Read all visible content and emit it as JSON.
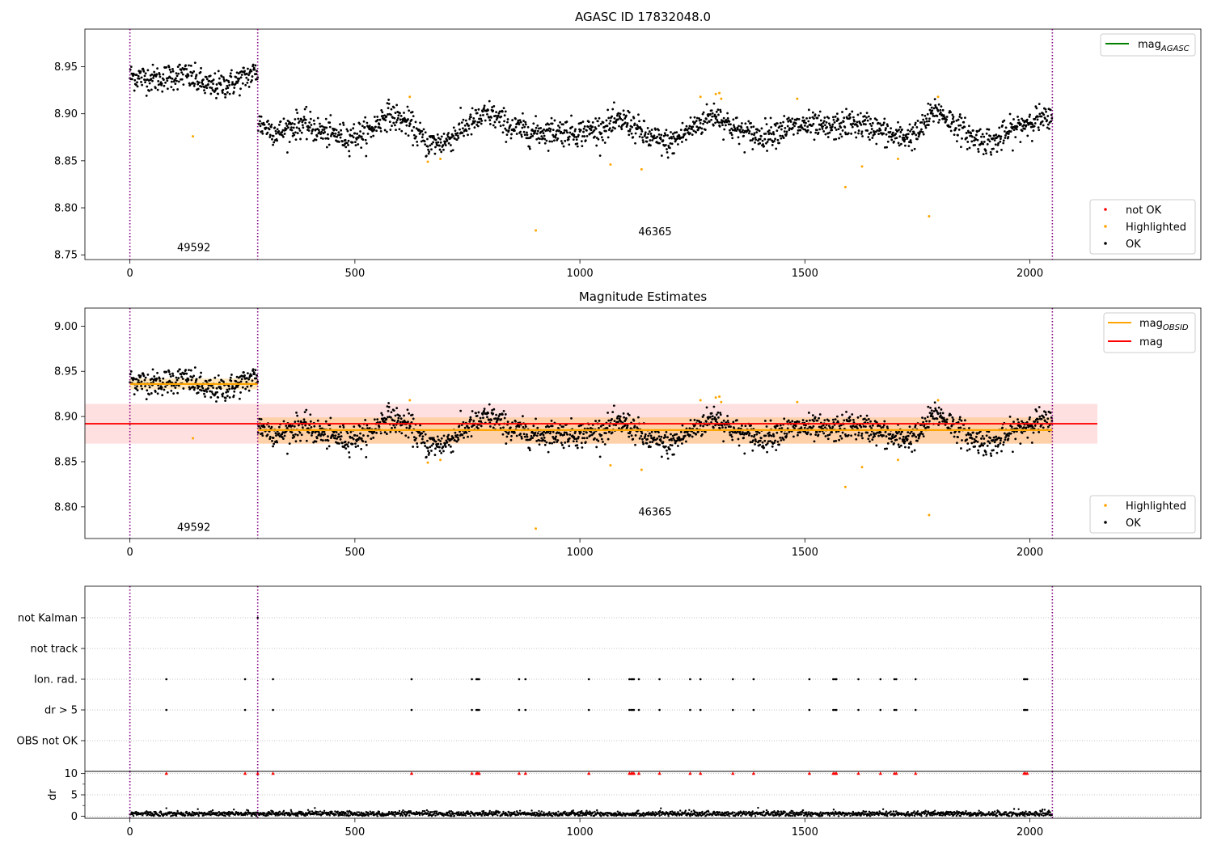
{
  "chart_data": [
    {
      "type": "scatter",
      "title": "AGASC ID 17832048.0",
      "xlim": [
        -100,
        2380
      ],
      "ylim": [
        8.745,
        8.99
      ],
      "xticks": [
        0,
        500,
        1000,
        1500,
        2000
      ],
      "yticks": [
        8.75,
        8.8,
        8.85,
        8.9,
        8.95
      ],
      "ytick_labels": [
        "8.75",
        "8.80",
        "8.85",
        "8.90",
        "8.95"
      ],
      "grid": false,
      "obsid_boundaries": [
        0,
        284,
        2050
      ],
      "obsid_labels": [
        {
          "text": "49592",
          "x": 142,
          "y": 8.754
        },
        {
          "text": "46365",
          "x": 1167,
          "y": 8.771
        }
      ],
      "line_legend": {
        "placement": "top-right",
        "entries": [
          {
            "label": "mag",
            "sub": "AGASC",
            "color": "#008000"
          }
        ]
      },
      "point_legend": {
        "placement": "bottom-right",
        "entries": [
          {
            "label": "not OK",
            "color": "#ff0000"
          },
          {
            "label": "Highlighted",
            "color": "#ffa500"
          },
          {
            "label": "OK",
            "color": "#000000"
          }
        ]
      },
      "series": [
        {
          "name": "OK",
          "color": "#000000",
          "trend": [
            [
              0,
              8.94
            ],
            [
              60,
              8.937
            ],
            [
              120,
              8.942
            ],
            [
              180,
              8.928
            ],
            [
              230,
              8.933
            ],
            [
              284,
              8.945
            ],
            [
              285,
              8.89
            ],
            [
              330,
              8.88
            ],
            [
              380,
              8.89
            ],
            [
              430,
              8.88
            ],
            [
              480,
              8.875
            ],
            [
              530,
              8.88
            ],
            [
              570,
              8.9
            ],
            [
              620,
              8.89
            ],
            [
              660,
              8.868
            ],
            [
              700,
              8.87
            ],
            [
              750,
              8.888
            ],
            [
              800,
              8.9
            ],
            [
              850,
              8.885
            ],
            [
              900,
              8.88
            ],
            [
              950,
              8.882
            ],
            [
              1000,
              8.88
            ],
            [
              1050,
              8.885
            ],
            [
              1100,
              8.893
            ],
            [
              1150,
              8.875
            ],
            [
              1200,
              8.868
            ],
            [
              1250,
              8.885
            ],
            [
              1300,
              8.9
            ],
            [
              1350,
              8.882
            ],
            [
              1400,
              8.876
            ],
            [
              1450,
              8.884
            ],
            [
              1500,
              8.888
            ],
            [
              1550,
              8.884
            ],
            [
              1600,
              8.89
            ],
            [
              1650,
              8.886
            ],
            [
              1700,
              8.875
            ],
            [
              1750,
              8.878
            ],
            [
              1790,
              8.905
            ],
            [
              1830,
              8.89
            ],
            [
              1870,
              8.875
            ],
            [
              1920,
              8.87
            ],
            [
              1970,
              8.885
            ],
            [
              2010,
              8.895
            ],
            [
              2050,
              8.892
            ]
          ],
          "noise": 0.0085,
          "count": 2050
        },
        {
          "name": "Highlighted",
          "color": "#ffa500",
          "points": [
            [
              140,
              8.876
            ],
            [
              622,
              8.918
            ],
            [
              662,
              8.849
            ],
            [
              690,
              8.852
            ],
            [
              902,
              8.776
            ],
            [
              1068,
              8.846
            ],
            [
              1137,
              8.841
            ],
            [
              1268,
              8.918
            ],
            [
              1302,
              8.921
            ],
            [
              1310,
              8.922
            ],
            [
              1314,
              8.916
            ],
            [
              1483,
              8.916
            ],
            [
              1590,
              8.822
            ],
            [
              1627,
              8.844
            ],
            [
              1707,
              8.852
            ],
            [
              1776,
              8.791
            ],
            [
              1796,
              8.918
            ]
          ]
        }
      ]
    },
    {
      "type": "scatter",
      "title": "Magnitude Estimates",
      "xlim": [
        -100,
        2380
      ],
      "ylim": [
        8.765,
        9.02
      ],
      "xticks": [
        0,
        500,
        1000,
        1500,
        2000
      ],
      "yticks": [
        8.8,
        8.85,
        8.9,
        8.95,
        9.0
      ],
      "ytick_labels": [
        "8.80",
        "8.85",
        "8.90",
        "8.95",
        "9.00"
      ],
      "grid": false,
      "obsid_boundaries": [
        0,
        284,
        2050
      ],
      "obsid_labels": [
        {
          "text": "49592",
          "x": 142,
          "y": 8.7735
        },
        {
          "text": "46365",
          "x": 1167,
          "y": 8.7905
        }
      ],
      "mag": {
        "value": 8.892,
        "band_low": 8.87,
        "band_high": 8.914,
        "x_range": [
          -100,
          2150
        ],
        "color": "#ff0000",
        "band_color": "#ffe0e0"
      },
      "obsid_mag": [
        {
          "x_range": [
            0,
            284
          ],
          "value": 8.936,
          "band_low": 8.93,
          "band_high": 8.942
        },
        {
          "x_range": [
            284,
            2050
          ],
          "value": 8.885,
          "band_low": 8.87,
          "band_high": 8.899
        }
      ],
      "line_legend": {
        "placement": "top-right",
        "entries": [
          {
            "label": "mag",
            "sub": "OBSID",
            "color": "#ffa500"
          },
          {
            "label": "mag",
            "sub": "",
            "color": "#ff0000"
          }
        ]
      },
      "point_legend": {
        "placement": "bottom-right",
        "entries": [
          {
            "label": "Highlighted",
            "color": "#ffa500"
          },
          {
            "label": "OK",
            "color": "#000000"
          }
        ]
      }
    },
    {
      "type": "scatter",
      "xlim": [
        -100,
        2380
      ],
      "flag_rows": [
        "not Kalman",
        "not track",
        "Ion. rad.",
        "dr > 5",
        "OBS not OK"
      ],
      "flag_points": {
        "not Kalman": [
          284
        ],
        "Ion. rad.": [
          81,
          256,
          318,
          626,
          760,
          770,
          773,
          776,
          865,
          879,
          1020,
          1110,
          1114,
          1117,
          1120,
          1131,
          1177,
          1245,
          1268,
          1340,
          1386,
          1510,
          1563,
          1567,
          1570,
          1619,
          1668,
          1699,
          1703,
          1746,
          1987,
          1990,
          1994
        ],
        "dr > 5": [
          81,
          256,
          318,
          626,
          760,
          770,
          773,
          776,
          865,
          879,
          1020,
          1110,
          1114,
          1117,
          1120,
          1131,
          1177,
          1245,
          1268,
          1340,
          1386,
          1510,
          1563,
          1567,
          1570,
          1619,
          1668,
          1699,
          1703,
          1746,
          1987,
          1990,
          1994
        ]
      },
      "dr": {
        "ylabel": "dr",
        "ylim": [
          -0.5,
          10.5
        ],
        "yticks": [
          0,
          5,
          10
        ],
        "ytick_labels": [
          "0",
          "5",
          "10"
        ],
        "minor_ticks": [
          2.5,
          7.5
        ],
        "clip_value": 10,
        "clipped_x": [
          81,
          256,
          284,
          318,
          626,
          760,
          770,
          773,
          776,
          865,
          879,
          1020,
          1110,
          1114,
          1117,
          1120,
          1131,
          1177,
          1245,
          1268,
          1340,
          1386,
          1510,
          1563,
          1567,
          1570,
          1619,
          1668,
          1699,
          1703,
          1746,
          1987,
          1990,
          1994
        ]
      },
      "xticks": [
        0,
        500,
        1000,
        1500,
        2000
      ],
      "obsid_boundaries": [
        0,
        284,
        2050
      ]
    }
  ]
}
